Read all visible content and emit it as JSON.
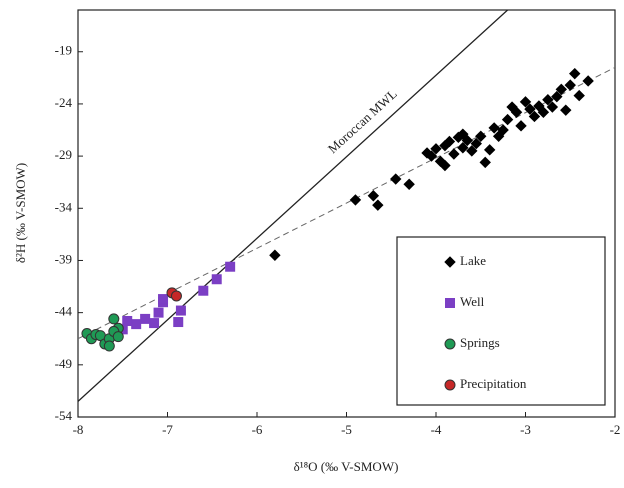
{
  "chart_data": {
    "type": "scatter",
    "xlabel": "δ¹⁸O (‰ V-SMOW)",
    "ylabel": "δ²H (‰ V-SMOW)",
    "xlim": [
      -8,
      -2
    ],
    "ylim": [
      -54,
      -15
    ],
    "xticks": [
      -8,
      -7,
      -6,
      -5,
      -4,
      -3,
      -2
    ],
    "yticks": [
      -54,
      -49,
      -44,
      -39,
      -34,
      -29,
      -24,
      -19
    ],
    "legend": "lower right",
    "reference_line": {
      "label": "Moroccan MWL",
      "color": "#222222",
      "x": [
        -8,
        -3.2
      ],
      "values": [
        -52.5,
        -15
      ]
    },
    "trend_line": {
      "color": "#666666",
      "x": [
        -8,
        -2
      ],
      "values": [
        -46.5,
        -20.5
      ]
    },
    "series": [
      {
        "name": "Lake",
        "marker": "diamond",
        "color": "#000000",
        "x": [
          -5.8,
          -4.9,
          -4.7,
          -4.65,
          -4.45,
          -4.3,
          -4.05,
          -4.0,
          -3.95,
          -3.9,
          -3.85,
          -3.8,
          -3.75,
          -3.7,
          -3.65,
          -3.6,
          -3.55,
          -3.5,
          -3.45,
          -3.4,
          -3.3,
          -3.25,
          -3.2,
          -3.15,
          -3.1,
          -3.05,
          -3.0,
          -2.95,
          -2.9,
          -2.85,
          -2.8,
          -2.75,
          -2.7,
          -2.65,
          -2.6,
          -2.55,
          -2.5,
          -2.45,
          -2.4,
          -2.3,
          -4.1,
          -3.9,
          -3.7,
          -3.35
        ],
        "values": [
          -38.5,
          -33.2,
          -32.8,
          -33.7,
          -31.2,
          -31.7,
          -29,
          -28.3,
          -29.5,
          -28,
          -27.6,
          -28.8,
          -27.2,
          -28.2,
          -27.5,
          -28.5,
          -27.8,
          -27.1,
          -29.6,
          -28.4,
          -27.1,
          -26.5,
          -25.5,
          -24.3,
          -24.8,
          -26.1,
          -23.8,
          -24.5,
          -25.2,
          -24.2,
          -24.8,
          -23.6,
          -24.3,
          -23.3,
          -22.6,
          -24.6,
          -22.2,
          -21.1,
          -23.2,
          -21.8,
          -28.7,
          -29.9,
          -26.9,
          -26.3
        ]
      },
      {
        "name": "Well",
        "marker": "square",
        "color": "#7b3fc4",
        "x": [
          -6.3,
          -6.45,
          -6.6,
          -6.85,
          -6.88,
          -7.05,
          -7.1,
          -7.15,
          -7.25,
          -7.35,
          -7.45,
          -7.5,
          -7.05
        ],
        "values": [
          -39.6,
          -40.8,
          -41.9,
          -43.8,
          -44.9,
          -43,
          -44,
          -45,
          -44.6,
          -45.1,
          -44.8,
          -45.6,
          -42.7
        ]
      },
      {
        "name": "Springs",
        "marker": "circle",
        "color": "#1f9a55",
        "x": [
          -7.9,
          -7.85,
          -7.8,
          -7.75,
          -7.7,
          -7.65,
          -7.6,
          -7.55,
          -7.6,
          -7.55,
          -7.65
        ],
        "values": [
          -46,
          -46.5,
          -46.1,
          -46.2,
          -47,
          -46.5,
          -44.6,
          -45.5,
          -45.8,
          -46.3,
          -47.2
        ]
      },
      {
        "name": "Precipitation",
        "marker": "circle",
        "color": "#c62828",
        "x": [
          -6.95,
          -6.9
        ],
        "values": [
          -42.1,
          -42.4
        ]
      }
    ]
  }
}
